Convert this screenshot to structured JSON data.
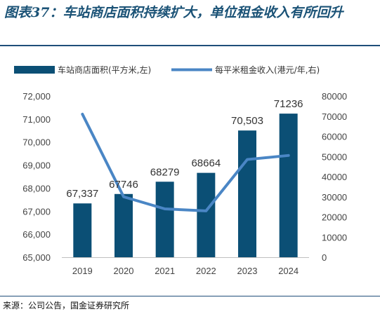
{
  "title": "图表37：车站商店面积持续扩大，单位租金收入有所回升",
  "source": "来源：公司公告，国金证券研究所",
  "colors": {
    "bar": "#0b4f75",
    "line": "#4a86c5",
    "title": "#1a5276"
  },
  "chart_data": {
    "type": "bar+line",
    "categories": [
      "2019",
      "2020",
      "2021",
      "2022",
      "2023",
      "2024"
    ],
    "series": [
      {
        "name": "车站商店面积(平方米,左)",
        "type": "bar",
        "axis": "left",
        "values": [
          67337,
          67746,
          68279,
          68664,
          70503,
          71236
        ],
        "labels": [
          "67,337",
          "67746",
          "68279",
          "68664",
          "70,503",
          "71236"
        ]
      },
      {
        "name": "每平米租金收入(港元/年,右)",
        "type": "line",
        "axis": "right",
        "values": [
          71000,
          30000,
          24000,
          23000,
          48500,
          50500
        ]
      }
    ],
    "y_left": {
      "lim": [
        65000,
        72000
      ],
      "ticks": [
        65000,
        66000,
        67000,
        68000,
        69000,
        70000,
        71000,
        72000
      ],
      "tick_labels": [
        "65,000",
        "66,000",
        "67,000",
        "68,000",
        "69,000",
        "70,000",
        "71,000",
        "72,000"
      ]
    },
    "y_right": {
      "lim": [
        0,
        80000
      ],
      "ticks": [
        0,
        10000,
        20000,
        30000,
        40000,
        50000,
        60000,
        70000,
        80000
      ],
      "tick_labels": [
        "0",
        "10000",
        "20000",
        "30000",
        "40000",
        "50000",
        "60000",
        "70000",
        "80000"
      ]
    },
    "legend": "top",
    "grid": false
  }
}
